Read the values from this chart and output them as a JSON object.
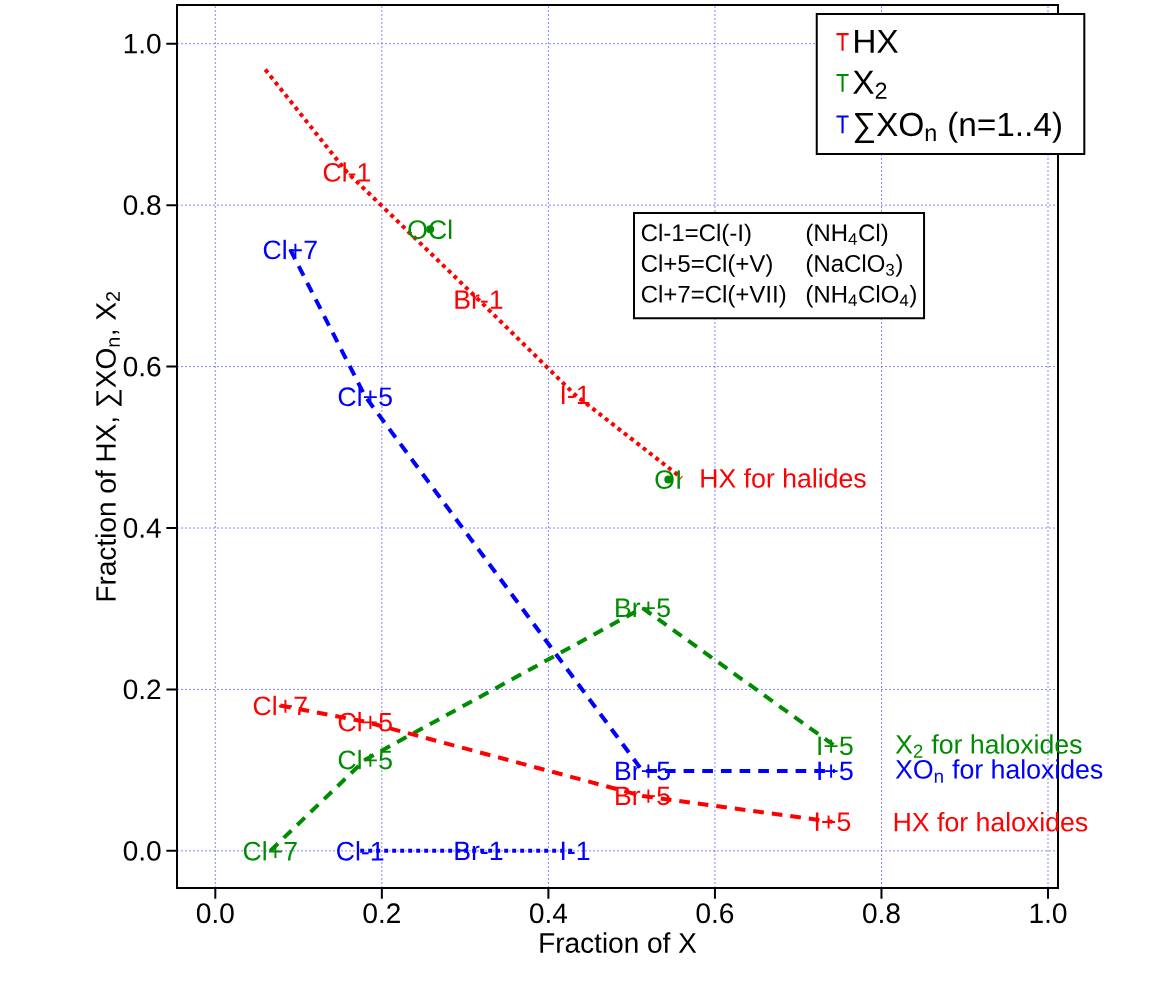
{
  "chart_data": {
    "type": "line",
    "xlabel": "Fraction of X",
    "ylabel": "Fraction of HX, ∑XO$_{n}$, X$_{2}$",
    "xlim": [
      -0.046,
      1.012
    ],
    "ylim": [
      -0.046,
      1.048
    ],
    "xticks": [
      {
        "value": 0,
        "label": "0.0"
      },
      {
        "value": 0.2,
        "label": "0.2"
      },
      {
        "value": 0.4,
        "label": "0.4"
      },
      {
        "value": 0.6,
        "label": "0.6"
      },
      {
        "value": 0.8,
        "label": "0.8"
      },
      {
        "value": 1,
        "label": "1.0"
      }
    ],
    "yticks": [
      {
        "value": 0,
        "label": "0.0"
      },
      {
        "value": 0.2,
        "label": "0.2"
      },
      {
        "value": 0.4,
        "label": "0.4"
      },
      {
        "value": 0.6,
        "label": "0.6"
      },
      {
        "value": 0.8,
        "label": "0.8"
      },
      {
        "value": 1,
        "label": "1.0"
      }
    ],
    "grid": true,
    "legend": "top right",
    "marker": "none",
    "series": [
      {
        "name": "HX",
        "color": "#ff0000",
        "line_style": "dotted",
        "x": [
          0.06,
          0.158,
          0.316,
          0.432,
          0.56
        ],
        "values": [
          0.968,
          0.841,
          0.683,
          0.565,
          0.462
        ],
        "value_labels": [
          null,
          "Cl-1",
          "Br-1",
          "I-1",
          null
        ]
      },
      {
        "name": "X$_{2}$",
        "color": "#008c00",
        "line_style": "dashed",
        "x": [
          0.066,
          0.18,
          0.513,
          0.744
        ],
        "values": [
          0,
          0.113,
          0.301,
          0.13
        ],
        "value_labels": [
          "Cl+7",
          "Cl+5",
          "Br+5",
          "I+5"
        ]
      },
      {
        "name": "∑XO$_{n}$ (n=1..4)",
        "color": "#0000ff",
        "line_style": "dashed",
        "x": [
          0.09,
          0.18,
          0.513,
          0.744
        ],
        "values": [
          0.745,
          0.563,
          0.099,
          0.099
        ],
        "value_labels": [
          "Cl+7",
          "Cl+5",
          "Br+5",
          "I+5"
        ]
      },
      {
        "color": "#ff0000",
        "line_style": "dashed",
        "x": [
          0.078,
          0.18,
          0.513,
          0.741
        ],
        "values": [
          0.18,
          0.16,
          0.068,
          0.036
        ],
        "value_labels": [
          "Cl+7",
          "Cl+5",
          "Br+5",
          "I+5"
        ]
      },
      {
        "color": "#0000ff",
        "line_style": "dotted",
        "x": [
          0.174,
          0.316,
          0.432
        ],
        "values": [
          0,
          0,
          0
        ],
        "value_labels": [
          "Cl-1",
          "Br-1",
          "I-1"
        ]
      },
      {
        "type": "scatter",
        "marker": "circle",
        "color": "#008c00",
        "x": [
          0.258,
          0.544
        ],
        "values": [
          0.77,
          0.46
        ],
        "value_labels": [
          "OCl",
          "OI"
        ]
      }
    ],
    "annotations": [
      {
        "text": "HX for halides",
        "x": 0.56,
        "y": 0.462
      },
      {
        "text": "X$_{2}$ for haloxides",
        "x": 0.744,
        "y": 0.13
      },
      {
        "text": "XO$_{n}$ for haloxides",
        "x": 0.744,
        "y": 0.099
      },
      {
        "text": "HX for haloxides",
        "x": 0.741,
        "y": 0.036
      },
      "Cl-1=Cl(-I)",
      "(NH$_{4}$Cl)",
      "Cl+5=Cl(+V)",
      "(NaClO$_{3}$)",
      "Cl+7=Cl(+VII)",
      "(NH$_{4}$ClO$_{4}$)"
    ]
  }
}
